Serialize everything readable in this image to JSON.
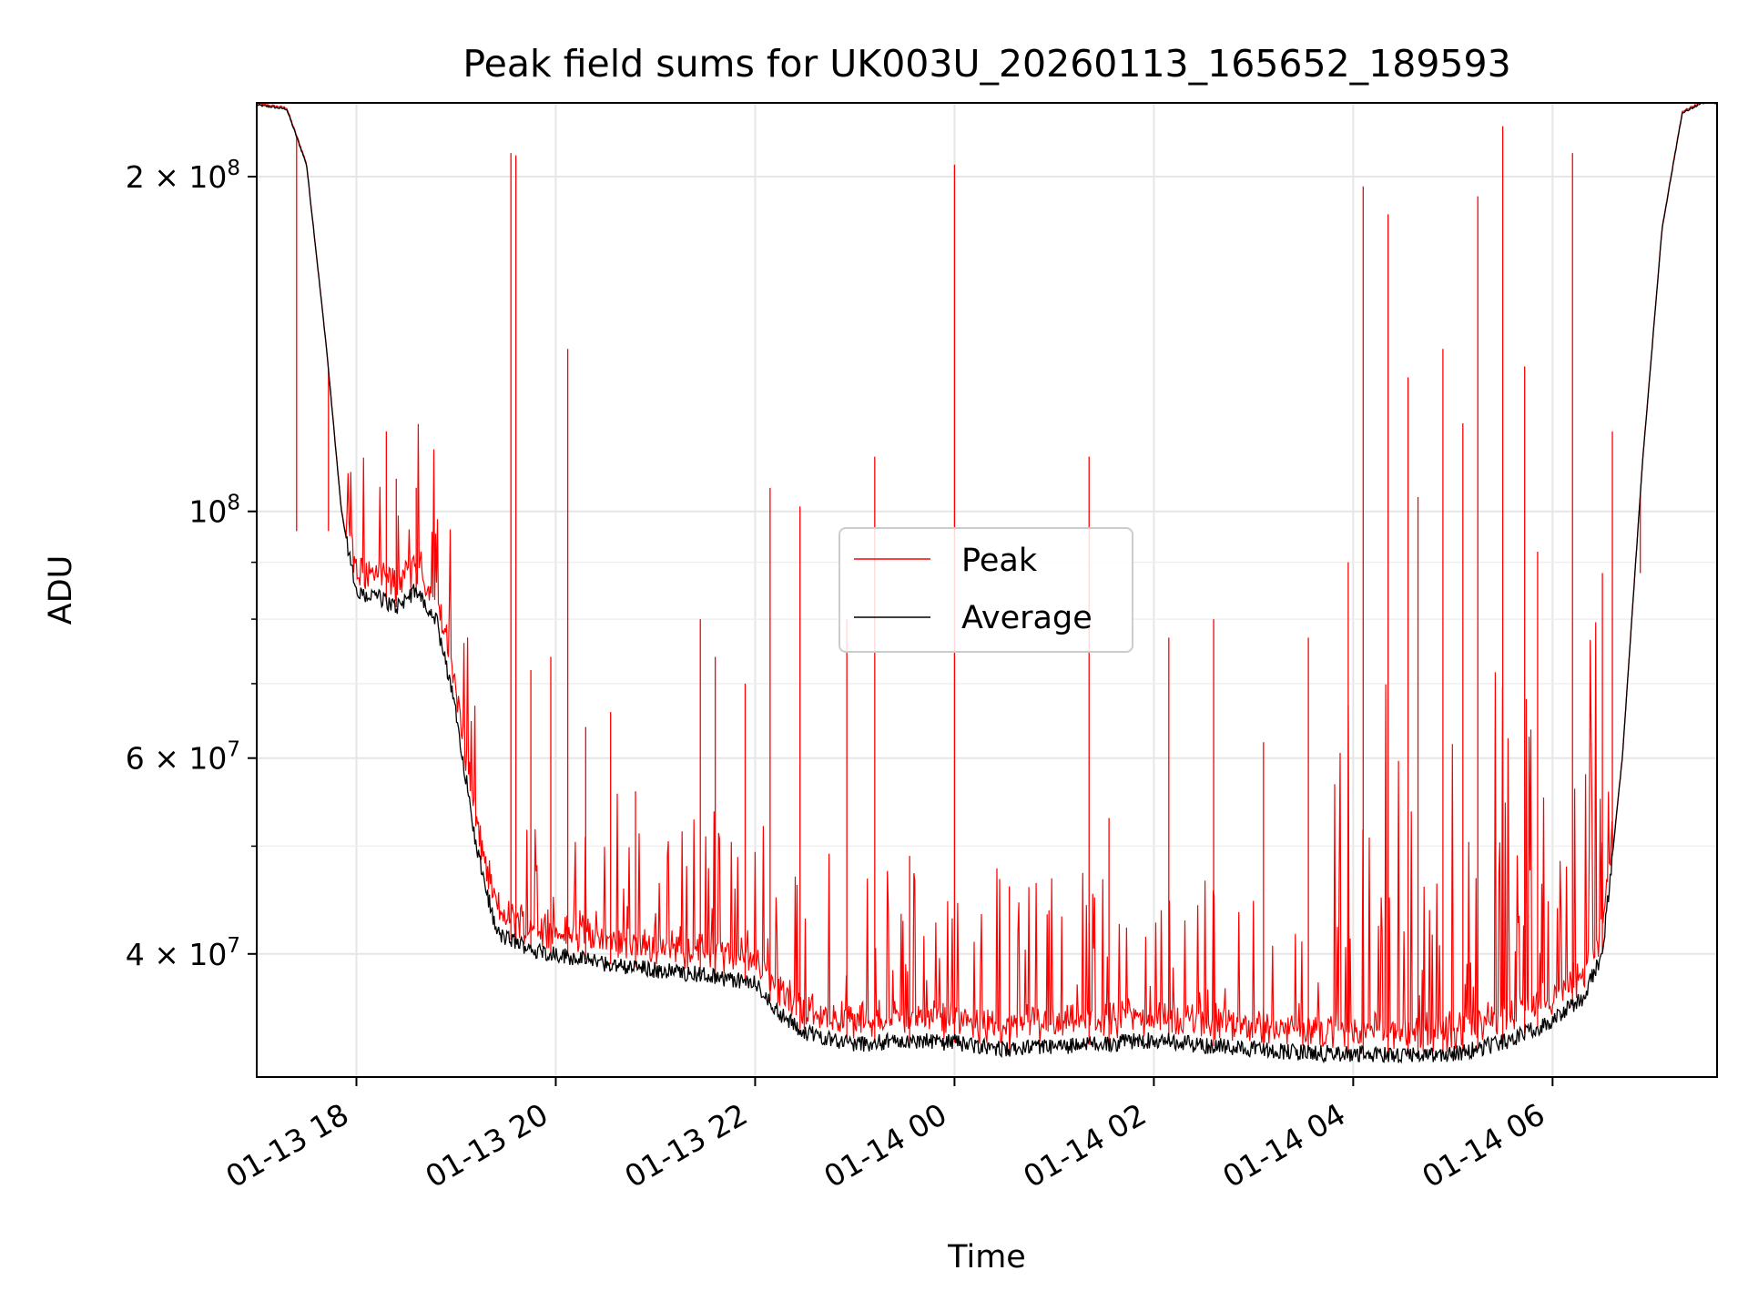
{
  "chart_data": {
    "type": "line",
    "title": "Peak field sums for UK003U_20260113_165652_189593",
    "xlabel": "Time",
    "ylabel": "ADU",
    "yscale": "log",
    "x_unit": "hours since 2026-01-13 17:00",
    "xlim": [
      0.0,
      14.65
    ],
    "ylim": [
      31000000,
      233000000
    ],
    "grid": true,
    "legend_position": "center",
    "x_ticks": [
      {
        "value": 1.0,
        "label": "01-13 18"
      },
      {
        "value": 3.0,
        "label": "01-13 20"
      },
      {
        "value": 5.0,
        "label": "01-13 22"
      },
      {
        "value": 7.0,
        "label": "01-14 00"
      },
      {
        "value": 9.0,
        "label": "01-14 02"
      },
      {
        "value": 11.0,
        "label": "01-14 04"
      },
      {
        "value": 13.0,
        "label": "01-14 06"
      }
    ],
    "y_major_ticks": [
      {
        "value": 40000000,
        "mantissa": "4",
        "exp": "7"
      },
      {
        "value": 60000000,
        "mantissa": "6",
        "exp": "7"
      },
      {
        "value": 100000000,
        "mantissa": "",
        "exp": "8"
      },
      {
        "value": 200000000,
        "mantissa": "2",
        "exp": "8"
      }
    ],
    "y_minor_ticks": [
      50000000,
      70000000,
      80000000,
      90000000
    ],
    "series": [
      {
        "name": "Peak",
        "color": "#ff0000"
      },
      {
        "name": "Average",
        "color": "#000000"
      }
    ],
    "baseline_average": {
      "x": [
        0.0,
        0.3,
        0.5,
        0.7,
        0.85,
        1.0,
        1.2,
        1.4,
        1.6,
        1.8,
        2.0,
        2.2,
        2.4,
        2.45,
        2.6,
        2.8,
        3.0,
        3.5,
        4.0,
        4.5,
        5.0,
        5.3,
        5.5,
        6.0,
        6.5,
        7.0,
        7.5,
        8.0,
        8.5,
        9.0,
        9.5,
        10.0,
        10.5,
        11.0,
        11.5,
        12.0,
        12.5,
        13.0,
        13.3,
        13.5,
        13.7,
        13.9,
        14.1,
        14.3,
        14.5,
        14.65
      ],
      "y": [
        232000000,
        230000000,
        205000000,
        140000000,
        100000000,
        84000000,
        84000000,
        82000000,
        85000000,
        80000000,
        66000000,
        50000000,
        42000000,
        41500000,
        41000000,
        40300000,
        40000000,
        39200000,
        38700000,
        38300000,
        37600000,
        35000000,
        34000000,
        33200000,
        33400000,
        33300000,
        32800000,
        33000000,
        33200000,
        33500000,
        33100000,
        32900000,
        32600000,
        32500000,
        32500000,
        32500000,
        33300000,
        34800000,
        36500000,
        40000000,
        60000000,
        110000000,
        180000000,
        228000000,
        233000000,
        233000000
      ]
    },
    "peak_spikes": {
      "x": [
        2.55,
        2.6,
        3.12,
        0.4,
        0.72,
        1.3,
        1.4,
        1.6,
        2.75,
        2.95,
        3.3,
        3.55,
        3.8,
        4.45,
        4.6,
        4.9,
        5.15,
        5.45,
        5.92,
        6.2,
        6.55,
        7.0,
        7.55,
        8.35,
        8.55,
        9.15,
        9.6,
        10.1,
        10.55,
        10.95,
        11.1,
        11.35,
        11.55,
        11.65,
        11.9,
        12.1,
        12.25,
        12.5,
        12.72,
        12.85,
        13.2,
        13.5,
        13.6,
        13.88
      ],
      "y": [
        210000000,
        209000000,
        140000000,
        96000000,
        96000000,
        118000000,
        107000000,
        105000000,
        72000000,
        74000000,
        64000000,
        66000000,
        56000000,
        80000000,
        74000000,
        70000000,
        105000000,
        101000000,
        80000000,
        112000000,
        49000000,
        205000000,
        46000000,
        112000000,
        53000000,
        77000000,
        80000000,
        62000000,
        77000000,
        90000000,
        196000000,
        185000000,
        132000000,
        103000000,
        140000000,
        120000000,
        192000000,
        222000000,
        135000000,
        92000000,
        210000000,
        88000000,
        118000000,
        88000000
      ]
    },
    "legend": [
      "Peak",
      "Average"
    ]
  }
}
